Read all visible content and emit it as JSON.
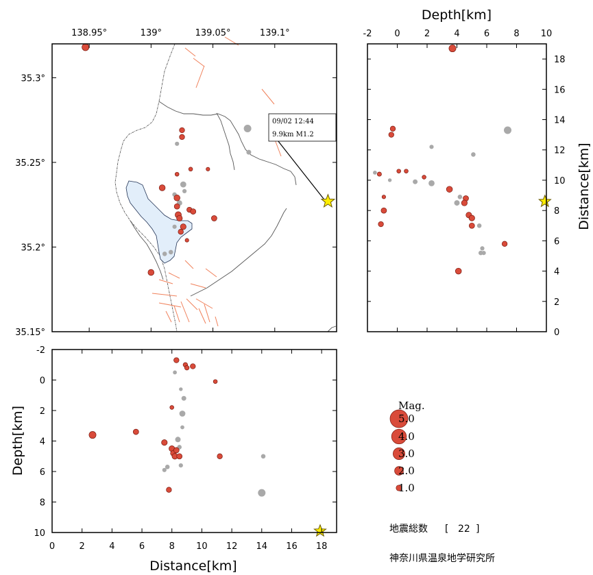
{
  "chart_data": [
    {
      "panel": "map",
      "type": "scatter",
      "xlabel": "",
      "ylabel": "",
      "xlim": [
        138.92,
        139.15
      ],
      "ylim": [
        35.15,
        35.32
      ],
      "x_ticks": [
        {
          "value": 138.95,
          "label": "138.95°"
        },
        {
          "value": 139.0,
          "label": "139°"
        },
        {
          "value": 139.05,
          "label": "139.05°"
        },
        {
          "value": 139.1,
          "label": "139.1°"
        }
      ],
      "y_ticks": [
        {
          "value": 35.15,
          "label": "35.15°"
        },
        {
          "value": 35.2,
          "label": "35.2°"
        },
        {
          "value": 35.25,
          "label": "35.25°"
        },
        {
          "value": 35.3,
          "label": "35.3°"
        }
      ],
      "points": [
        {
          "lon": 138.947,
          "lat": 35.318,
          "mag": 1.4,
          "state": "red"
        },
        {
          "lon": 139.009,
          "lat": 35.235,
          "mag": 1.1,
          "state": "red"
        },
        {
          "lon": 139.0,
          "lat": 35.185,
          "mag": 1.1,
          "state": "red"
        },
        {
          "lon": 139.025,
          "lat": 35.269,
          "mag": 0.8,
          "state": "red"
        },
        {
          "lon": 139.025,
          "lat": 35.265,
          "mag": 0.8,
          "state": "red"
        },
        {
          "lon": 139.021,
          "lat": 35.229,
          "mag": 1.1,
          "state": "red"
        },
        {
          "lon": 139.021,
          "lat": 35.224,
          "mag": 0.9,
          "state": "red"
        },
        {
          "lon": 139.022,
          "lat": 35.219,
          "mag": 1.2,
          "state": "red"
        },
        {
          "lon": 139.023,
          "lat": 35.217,
          "mag": 1.0,
          "state": "red"
        },
        {
          "lon": 139.026,
          "lat": 35.212,
          "mag": 1.0,
          "state": "red"
        },
        {
          "lon": 139.024,
          "lat": 35.209,
          "mag": 0.8,
          "state": "red"
        },
        {
          "lon": 139.031,
          "lat": 35.222,
          "mag": 0.8,
          "state": "red"
        },
        {
          "lon": 139.034,
          "lat": 35.221,
          "mag": 0.9,
          "state": "red"
        },
        {
          "lon": 139.032,
          "lat": 35.246,
          "mag": 0.4,
          "state": "red"
        },
        {
          "lon": 139.021,
          "lat": 35.243,
          "mag": 0.4,
          "state": "red"
        },
        {
          "lon": 139.051,
          "lat": 35.217,
          "mag": 0.9,
          "state": "red"
        },
        {
          "lon": 139.046,
          "lat": 35.246,
          "mag": 0.3,
          "state": "red"
        },
        {
          "lon": 139.029,
          "lat": 35.204,
          "mag": 0.3,
          "state": "red"
        },
        {
          "lon": 139.078,
          "lat": 35.27,
          "mag": 1.6,
          "state": "gray"
        },
        {
          "lon": 139.079,
          "lat": 35.256,
          "mag": 0.7,
          "state": "gray"
        },
        {
          "lon": 139.026,
          "lat": 35.237,
          "mag": 1.1,
          "state": "gray"
        },
        {
          "lon": 139.023,
          "lat": 35.226,
          "mag": 0.9,
          "state": "gray"
        },
        {
          "lon": 139.019,
          "lat": 35.231,
          "mag": 0.6,
          "state": "gray"
        },
        {
          "lon": 139.021,
          "lat": 35.261,
          "mag": 0.5,
          "state": "gray"
        },
        {
          "lon": 139.016,
          "lat": 35.197,
          "mag": 0.6,
          "state": "gray"
        },
        {
          "lon": 139.011,
          "lat": 35.196,
          "mag": 0.6,
          "state": "gray"
        },
        {
          "lon": 139.019,
          "lat": 35.212,
          "mag": 0.5,
          "state": "gray"
        },
        {
          "lon": 139.027,
          "lat": 35.233,
          "mag": 0.5,
          "state": "gray"
        }
      ],
      "latest_event": {
        "lon": 139.143,
        "lat": 35.227,
        "label_time": "09/02 12:44",
        "label_info": "9.9km M1.2"
      }
    },
    {
      "panel": "depth-vs-distance",
      "type": "scatter",
      "xlabel": "Depth[km]",
      "ylabel": "Distance[km]",
      "xlim": [
        -2,
        10
      ],
      "ylim": [
        0,
        19
      ],
      "x_ticks": [
        -2,
        0,
        2,
        4,
        6,
        8,
        10
      ],
      "y_ticks": [
        0,
        2,
        4,
        6,
        8,
        10,
        12,
        14,
        16,
        18
      ],
      "points": [
        {
          "depth": 3.7,
          "dist": 18.7,
          "mag": 1.4,
          "state": "red"
        },
        {
          "depth": -0.3,
          "dist": 13.4,
          "mag": 0.8,
          "state": "red"
        },
        {
          "depth": -0.4,
          "dist": 13.0,
          "mag": 0.8,
          "state": "red"
        },
        {
          "depth": -1.2,
          "dist": 10.4,
          "mag": 0.5,
          "state": "red"
        },
        {
          "depth": 0.1,
          "dist": 10.6,
          "mag": 0.4,
          "state": "red"
        },
        {
          "depth": 0.6,
          "dist": 10.6,
          "mag": 0.4,
          "state": "red"
        },
        {
          "depth": 1.8,
          "dist": 10.2,
          "mag": 0.4,
          "state": "red"
        },
        {
          "depth": -0.9,
          "dist": 8.9,
          "mag": 0.3,
          "state": "red"
        },
        {
          "depth": -0.9,
          "dist": 8.0,
          "mag": 0.9,
          "state": "red"
        },
        {
          "depth": -1.1,
          "dist": 7.1,
          "mag": 0.8,
          "state": "red"
        },
        {
          "depth": 3.5,
          "dist": 9.4,
          "mag": 1.1,
          "state": "red"
        },
        {
          "depth": 4.6,
          "dist": 8.8,
          "mag": 0.9,
          "state": "red"
        },
        {
          "depth": 4.5,
          "dist": 8.5,
          "mag": 1.0,
          "state": "red"
        },
        {
          "depth": 4.8,
          "dist": 7.7,
          "mag": 1.0,
          "state": "red"
        },
        {
          "depth": 5.0,
          "dist": 7.5,
          "mag": 1.0,
          "state": "red"
        },
        {
          "depth": 5.0,
          "dist": 7.0,
          "mag": 0.9,
          "state": "red"
        },
        {
          "depth": 7.2,
          "dist": 5.8,
          "mag": 0.8,
          "state": "red"
        },
        {
          "depth": 4.1,
          "dist": 4.0,
          "mag": 1.1,
          "state": "red"
        },
        {
          "depth": 7.4,
          "dist": 13.3,
          "mag": 1.6,
          "state": "gray"
        },
        {
          "depth": 2.3,
          "dist": 12.2,
          "mag": 0.5,
          "state": "gray"
        },
        {
          "depth": 5.1,
          "dist": 11.7,
          "mag": 0.6,
          "state": "gray"
        },
        {
          "depth": 1.2,
          "dist": 9.9,
          "mag": 0.7,
          "state": "gray"
        },
        {
          "depth": 2.3,
          "dist": 9.8,
          "mag": 1.1,
          "state": "gray"
        },
        {
          "depth": 4.0,
          "dist": 8.5,
          "mag": 0.9,
          "state": "gray"
        },
        {
          "depth": 4.2,
          "dist": 8.9,
          "mag": 0.6,
          "state": "gray"
        },
        {
          "depth": 5.5,
          "dist": 7.0,
          "mag": 0.6,
          "state": "gray"
        },
        {
          "depth": 5.7,
          "dist": 5.5,
          "mag": 0.5,
          "state": "gray"
        },
        {
          "depth": 5.6,
          "dist": 5.2,
          "mag": 0.6,
          "state": "gray"
        },
        {
          "depth": 5.8,
          "dist": 5.2,
          "mag": 0.5,
          "state": "gray"
        },
        {
          "depth": -1.5,
          "dist": 10.5,
          "mag": 0.4,
          "state": "gray"
        },
        {
          "depth": -0.5,
          "dist": 10.0,
          "mag": 0.3,
          "state": "gray"
        }
      ],
      "latest_event": {
        "depth": 9.9,
        "dist": 8.6
      }
    },
    {
      "panel": "distance-vs-depth",
      "type": "scatter",
      "xlabel": "Distance[km]",
      "ylabel": "Depth[km]",
      "xlim": [
        0,
        19
      ],
      "ylim": [
        10,
        -2
      ],
      "x_ticks": [
        0,
        2,
        4,
        6,
        8,
        10,
        12,
        14,
        16,
        18
      ],
      "y_ticks": [
        -2,
        0,
        2,
        4,
        6,
        8,
        10
      ],
      "points": [
        {
          "dist": 2.7,
          "depth": 3.6,
          "mag": 1.4,
          "state": "red"
        },
        {
          "dist": 5.6,
          "depth": 3.4,
          "mag": 0.9,
          "state": "red"
        },
        {
          "dist": 7.5,
          "depth": 4.1,
          "mag": 1.0,
          "state": "red"
        },
        {
          "dist": 8.0,
          "depth": 4.5,
          "mag": 1.0,
          "state": "red"
        },
        {
          "dist": 8.1,
          "depth": 4.8,
          "mag": 1.0,
          "state": "red"
        },
        {
          "dist": 8.2,
          "depth": 5.0,
          "mag": 1.0,
          "state": "red"
        },
        {
          "dist": 8.5,
          "depth": 5.0,
          "mag": 0.9,
          "state": "red"
        },
        {
          "dist": 8.3,
          "depth": 4.6,
          "mag": 0.9,
          "state": "red"
        },
        {
          "dist": 8.3,
          "depth": -1.3,
          "mag": 0.8,
          "state": "red"
        },
        {
          "dist": 8.9,
          "depth": -1.0,
          "mag": 0.6,
          "state": "red"
        },
        {
          "dist": 9.0,
          "depth": -0.8,
          "mag": 0.6,
          "state": "red"
        },
        {
          "dist": 9.4,
          "depth": -0.9,
          "mag": 0.8,
          "state": "red"
        },
        {
          "dist": 10.9,
          "depth": 0.1,
          "mag": 0.4,
          "state": "red"
        },
        {
          "dist": 11.2,
          "depth": 5.0,
          "mag": 0.8,
          "state": "red"
        },
        {
          "dist": 7.8,
          "depth": 7.2,
          "mag": 0.8,
          "state": "red"
        },
        {
          "dist": 8.0,
          "depth": 1.8,
          "mag": 0.4,
          "state": "red"
        },
        {
          "dist": 14.0,
          "depth": 7.4,
          "mag": 1.6,
          "state": "gray"
        },
        {
          "dist": 14.1,
          "depth": 5.0,
          "mag": 0.6,
          "state": "gray"
        },
        {
          "dist": 8.7,
          "depth": 2.2,
          "mag": 1.1,
          "state": "gray"
        },
        {
          "dist": 8.8,
          "depth": 1.2,
          "mag": 0.7,
          "state": "gray"
        },
        {
          "dist": 8.4,
          "depth": 3.9,
          "mag": 0.9,
          "state": "gray"
        },
        {
          "dist": 7.7,
          "depth": 5.7,
          "mag": 0.6,
          "state": "gray"
        },
        {
          "dist": 7.5,
          "depth": 5.9,
          "mag": 0.5,
          "state": "gray"
        },
        {
          "dist": 8.6,
          "depth": 5.6,
          "mag": 0.5,
          "state": "gray"
        },
        {
          "dist": 8.5,
          "depth": 4.4,
          "mag": 0.6,
          "state": "gray"
        },
        {
          "dist": 8.7,
          "depth": 3.1,
          "mag": 0.4,
          "state": "gray"
        },
        {
          "dist": 8.2,
          "depth": -0.5,
          "mag": 0.4,
          "state": "gray"
        },
        {
          "dist": 8.6,
          "depth": 0.6,
          "mag": 0.3,
          "state": "gray"
        }
      ],
      "latest_event": {
        "dist": 17.9,
        "depth": 9.9
      }
    }
  ],
  "legend": {
    "title": "Mag.",
    "items": [
      {
        "mag": 5.0,
        "label": "5.0"
      },
      {
        "mag": 4.0,
        "label": "4.0"
      },
      {
        "mag": 3.0,
        "label": "3.0"
      },
      {
        "mag": 2.0,
        "label": "2.0"
      },
      {
        "mag": 1.0,
        "label": "1.0"
      }
    ]
  },
  "total_count": {
    "label": "地震総数",
    "bracket_open": "[",
    "value": "22",
    "bracket_close": "]"
  },
  "organization": "神奈川県温泉地学研究所",
  "colors": {
    "quake_fill": "#d94b3a",
    "quake_edge": "#7a1a10",
    "old_quake": "#a9a9a9",
    "fault_line": "#f0805a",
    "boundary": "#555555",
    "lake_fill": "#e2eefa",
    "lake_edge": "#223355",
    "star_fill": "#ffee00",
    "star_edge": "#6a5a00",
    "frame": "#000000"
  }
}
